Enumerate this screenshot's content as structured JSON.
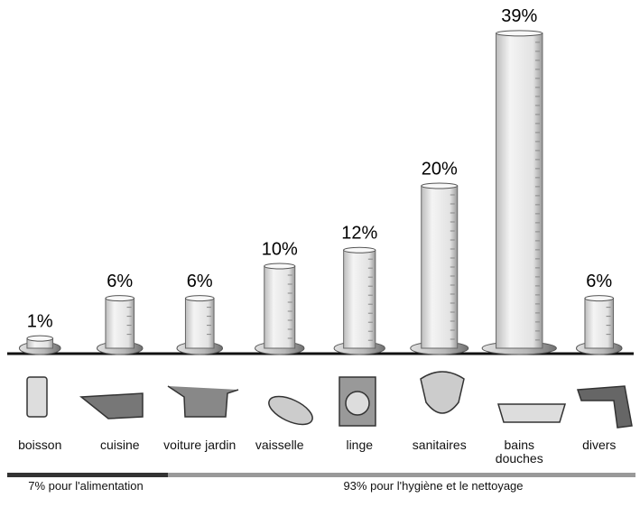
{
  "chart_data": {
    "type": "bar",
    "categories": [
      "boisson",
      "cuisine",
      "voiture jardin",
      "vaisselle",
      "linge",
      "sanitaires",
      "bains douches",
      "divers"
    ],
    "values": [
      1,
      6,
      6,
      10,
      12,
      20,
      39,
      6
    ],
    "value_labels": [
      "1%",
      "6%",
      "6%",
      "10%",
      "12%",
      "20%",
      "39%",
      "6%"
    ],
    "groups": [
      "7% pour l'alimentation",
      "93% pour l'hygiène et le nettoyage"
    ]
  }
}
